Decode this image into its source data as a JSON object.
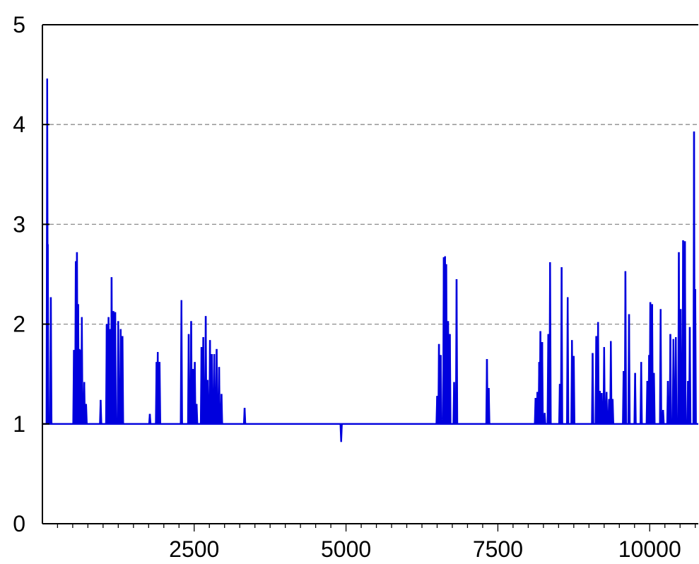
{
  "chart_data": {
    "type": "line",
    "title": "",
    "xlabel": "",
    "ylabel": "",
    "xlim": [
      1,
      10800
    ],
    "ylim": [
      0,
      5
    ],
    "x_ticks": [
      2500,
      5000,
      7500,
      10000
    ],
    "x_tick_labels": [
      "2500",
      "5000",
      "7500",
      "10000"
    ],
    "x_minor_tick_step": 250,
    "y_ticks": [
      0,
      1,
      2,
      3,
      4,
      5
    ],
    "y_tick_labels": [
      "0",
      "1",
      "2",
      "3",
      "4",
      "5"
    ],
    "gridlines_y": [
      2,
      3,
      4
    ],
    "grid": "horizontal dashed",
    "baseline": 1.0,
    "series": [
      {
        "color": "#0000dd",
        "spikes": [
          [
            80,
            4.46
          ],
          [
            90,
            2.8
          ],
          [
            140,
            2.27
          ],
          [
            520,
            1.74
          ],
          [
            550,
            2.63
          ],
          [
            570,
            2.72
          ],
          [
            590,
            2.2
          ],
          [
            610,
            1.75
          ],
          [
            630,
            1.74
          ],
          [
            650,
            2.07
          ],
          [
            690,
            1.42
          ],
          [
            720,
            1.2
          ],
          [
            960,
            1.24
          ],
          [
            1060,
            2.0
          ],
          [
            1090,
            2.07
          ],
          [
            1110,
            1.95
          ],
          [
            1140,
            2.47
          ],
          [
            1170,
            2.13
          ],
          [
            1200,
            2.12
          ],
          [
            1250,
            2.03
          ],
          [
            1290,
            1.95
          ],
          [
            1320,
            1.88
          ],
          [
            1770,
            1.1
          ],
          [
            1880,
            1.62
          ],
          [
            1900,
            1.72
          ],
          [
            1930,
            1.62
          ],
          [
            2290,
            2.24
          ],
          [
            2410,
            1.9
          ],
          [
            2450,
            2.03
          ],
          [
            2480,
            1.55
          ],
          [
            2510,
            1.62
          ],
          [
            2540,
            1.2
          ],
          [
            2620,
            1.77
          ],
          [
            2650,
            1.87
          ],
          [
            2690,
            2.08
          ],
          [
            2720,
            1.44
          ],
          [
            2760,
            1.84
          ],
          [
            2790,
            1.7
          ],
          [
            2830,
            1.7
          ],
          [
            2870,
            1.75
          ],
          [
            2910,
            1.57
          ],
          [
            2950,
            1.3
          ],
          [
            3330,
            1.16
          ],
          [
            4920,
            0.82
          ],
          [
            6500,
            1.28
          ],
          [
            6530,
            1.8
          ],
          [
            6560,
            1.69
          ],
          [
            6610,
            2.67
          ],
          [
            6630,
            2.68
          ],
          [
            6650,
            2.6
          ],
          [
            6680,
            2.03
          ],
          [
            6710,
            1.9
          ],
          [
            6780,
            1.42
          ],
          [
            6820,
            2.45
          ],
          [
            7320,
            1.65
          ],
          [
            7350,
            1.36
          ],
          [
            8120,
            1.26
          ],
          [
            8150,
            1.32
          ],
          [
            8180,
            1.62
          ],
          [
            8200,
            1.93
          ],
          [
            8230,
            1.82
          ],
          [
            8270,
            1.11
          ],
          [
            8330,
            1.9
          ],
          [
            8360,
            2.62
          ],
          [
            8520,
            1.4
          ],
          [
            8550,
            2.57
          ],
          [
            8650,
            2.27
          ],
          [
            8720,
            1.84
          ],
          [
            8750,
            1.68
          ],
          [
            9060,
            1.71
          ],
          [
            9120,
            1.88
          ],
          [
            9150,
            2.02
          ],
          [
            9180,
            1.33
          ],
          [
            9210,
            1.31
          ],
          [
            9250,
            1.77
          ],
          [
            9290,
            1.32
          ],
          [
            9330,
            1.25
          ],
          [
            9360,
            1.83
          ],
          [
            9390,
            1.25
          ],
          [
            9570,
            1.53
          ],
          [
            9600,
            2.53
          ],
          [
            9660,
            2.1
          ],
          [
            9760,
            1.51
          ],
          [
            9860,
            1.62
          ],
          [
            9960,
            1.43
          ],
          [
            9990,
            1.69
          ],
          [
            10010,
            2.22
          ],
          [
            10040,
            2.2
          ],
          [
            10070,
            1.51
          ],
          [
            10180,
            2.15
          ],
          [
            10220,
            1.14
          ],
          [
            10300,
            1.43
          ],
          [
            10340,
            1.9
          ],
          [
            10390,
            1.85
          ],
          [
            10430,
            1.87
          ],
          [
            10480,
            2.72
          ],
          [
            10510,
            2.15
          ],
          [
            10550,
            2.84
          ],
          [
            10580,
            2.83
          ],
          [
            10630,
            1.43
          ],
          [
            10660,
            1.97
          ],
          [
            10730,
            3.93
          ],
          [
            10750,
            2.35
          ]
        ]
      }
    ]
  }
}
